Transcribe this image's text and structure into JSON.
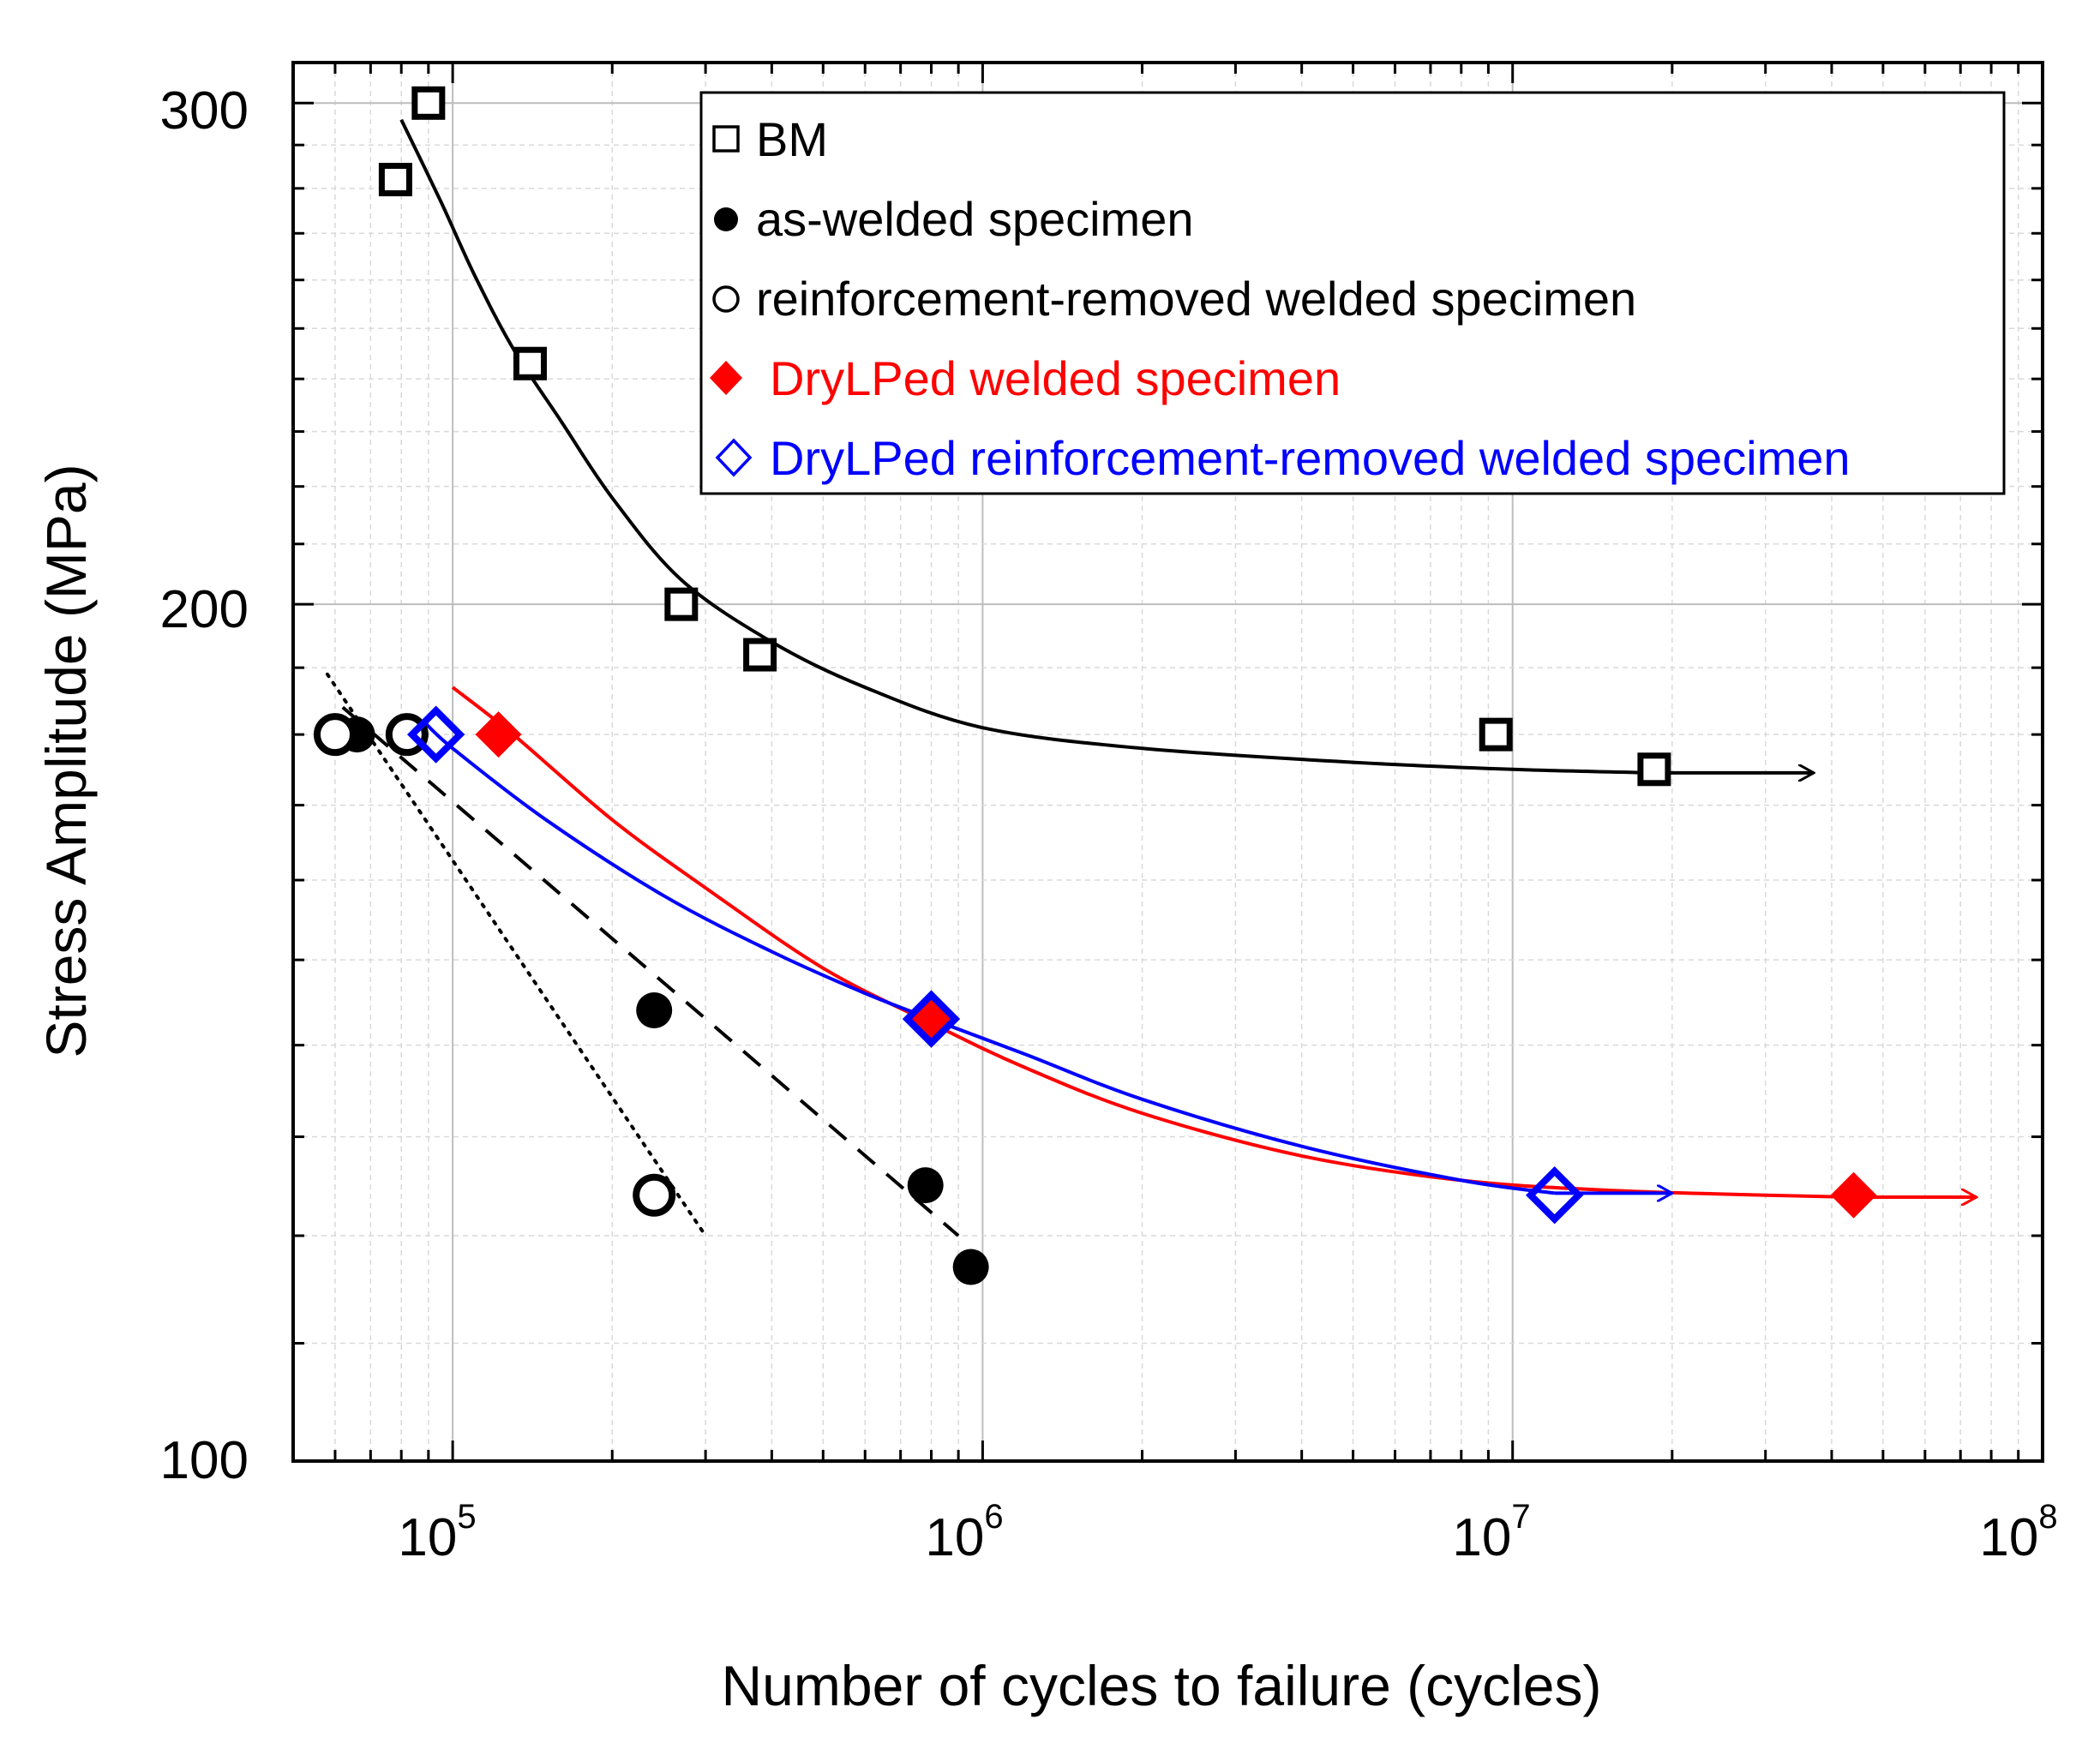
{
  "chart_data": {
    "type": "scatter",
    "xlabel": "Number of cycles to failure (cycles)",
    "ylabel": "Stress Amplitude (MPa)",
    "xscale": "log",
    "yscale": "log",
    "xlim": [
      50000,
      100000000
    ],
    "ylim": [
      100,
      310
    ],
    "x_ticks": [
      {
        "base": "10",
        "exp": "5",
        "value": 100000
      },
      {
        "base": "10",
        "exp": "6",
        "value": 1000000
      },
      {
        "base": "10",
        "exp": "7",
        "value": 10000000
      },
      {
        "base": "10",
        "exp": "8",
        "value": 100000000
      }
    ],
    "y_ticks": [
      {
        "label": "100",
        "value": 100
      },
      {
        "label": "200",
        "value": 200
      },
      {
        "label": "300",
        "value": 300
      }
    ],
    "legend_position": "top-right",
    "series": [
      {
        "name": "BM",
        "marker": "square-open",
        "color": "#000000",
        "points": [
          [
            78000,
            282
          ],
          [
            90000,
            300
          ],
          [
            140000,
            243
          ],
          [
            270000,
            200
          ],
          [
            380000,
            192
          ],
          [
            9300000,
            180
          ],
          [
            18500000,
            175
          ]
        ],
        "runout": [
          18500000,
          175
        ],
        "fit": {
          "style": "solid",
          "color": "#000000",
          "x_end": 37000000,
          "arrow_from": 18500000,
          "points": [
            [
              80000,
              296
            ],
            [
              95000,
              277
            ],
            [
              110000,
              261
            ],
            [
              130000,
              246
            ],
            [
              160000,
              232
            ],
            [
              200000,
              218
            ],
            [
              270000,
              204
            ],
            [
              400000,
              194
            ],
            [
              600000,
              187
            ],
            [
              1000000,
              181
            ],
            [
              2000000,
              178
            ],
            [
              5000000,
              176
            ],
            [
              10000000,
              175
            ],
            [
              18500000,
              174.5
            ]
          ]
        }
      },
      {
        "name": "as-welded specimen",
        "marker": "circle-filled",
        "color": "#000000",
        "points": [
          [
            66000,
            180
          ],
          [
            240000,
            144
          ],
          [
            780000,
            125
          ],
          [
            950000,
            117
          ]
        ],
        "fit": {
          "style": "dashed",
          "color": "#000000",
          "points": [
            [
              62000,
              184
            ],
            [
              900000,
              120
            ]
          ]
        }
      },
      {
        "name": "reinforcement-removed welded specimen",
        "marker": "circle-open",
        "color": "#000000",
        "points": [
          [
            60000,
            180
          ],
          [
            82000,
            180
          ],
          [
            240000,
            124
          ]
        ],
        "fit": {
          "style": "dotted",
          "color": "#000000",
          "points": [
            [
              58000,
              189
            ],
            [
              300000,
              120
            ]
          ]
        }
      },
      {
        "name": "DryLPed welded specimen",
        "marker": "diamond-filled",
        "color": "#ff0000",
        "points": [
          [
            122000,
            180
          ],
          [
            800000,
            143
          ],
          [
            44000000,
            124
          ]
        ],
        "runout": [
          44000000,
          124
        ],
        "fit": {
          "style": "solid",
          "color": "#ff0000",
          "x_end": 75000000,
          "arrow_from": 44000000,
          "points": [
            [
              100000,
              187
            ],
            [
              130000,
              180
            ],
            [
              200000,
              168
            ],
            [
              300000,
              159
            ],
            [
              500000,
              149
            ],
            [
              800000,
              142.5
            ],
            [
              1200000,
              137.5
            ],
            [
              2000000,
              132.5
            ],
            [
              4000000,
              128
            ],
            [
              8000000,
              125.5
            ],
            [
              15000000,
              124.5
            ],
            [
              30000000,
              124
            ],
            [
              44000000,
              123.8
            ]
          ]
        }
      },
      {
        "name": "DryLPed reinforcement-removed welded specimen",
        "marker": "diamond-open",
        "color": "#0000ff",
        "points": [
          [
            93000,
            180
          ],
          [
            800000,
            143
          ],
          [
            12000000,
            124
          ]
        ],
        "runout": [
          12000000,
          124
        ],
        "fit": {
          "style": "solid",
          "color": "#0000ff",
          "x_end": 20000000,
          "arrow_from": 12000000,
          "points": [
            [
              88000,
              182
            ],
            [
              100000,
              178
            ],
            [
              150000,
              168
            ],
            [
              250000,
              158
            ],
            [
              400000,
              151
            ],
            [
              600000,
              146
            ],
            [
              800000,
              143
            ],
            [
              1200000,
              139
            ],
            [
              2000000,
              134
            ],
            [
              4000000,
              129
            ],
            [
              8000000,
              125.5
            ],
            [
              12000000,
              124.2
            ]
          ]
        }
      }
    ]
  }
}
